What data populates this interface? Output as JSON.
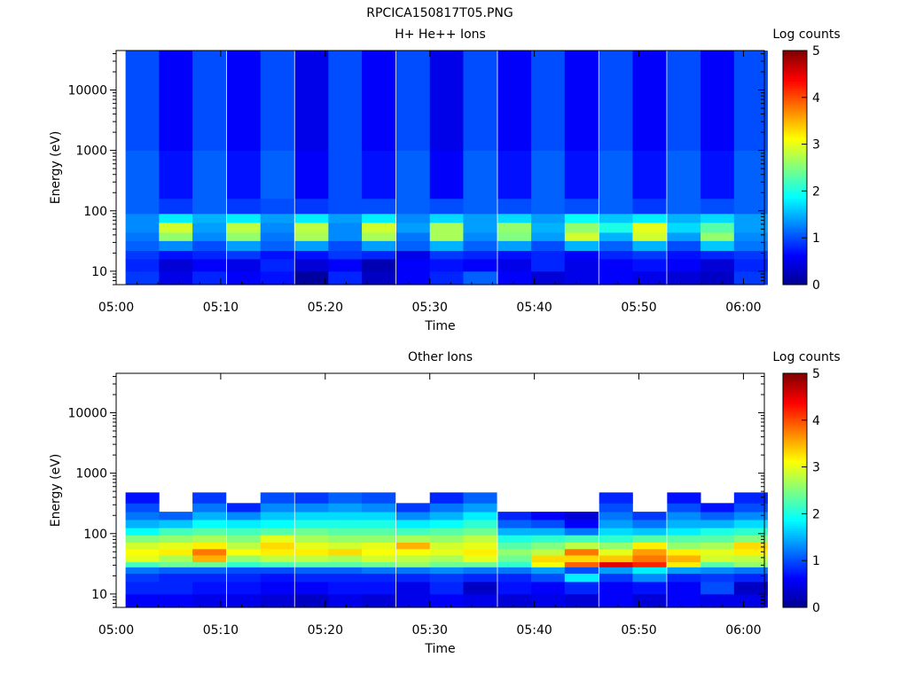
{
  "file_title": "RPCICA150817T05.PNG",
  "colorbar": {
    "label": "Log counts",
    "ticks": [
      "0",
      "1",
      "2",
      "3",
      "4",
      "5"
    ],
    "range": [
      0,
      5
    ],
    "colormap": [
      "#00008f",
      "#0000ff",
      "#0080ff",
      "#00ffff",
      "#80ff80",
      "#ffff00",
      "#ff8000",
      "#ff0000",
      "#800000"
    ]
  },
  "chart_data": [
    {
      "type": "heatmap",
      "title": "H+ He++ Ions",
      "xlabel": "Time",
      "ylabel": "Energy (eV)",
      "x_ticks": [
        "05:00",
        "05:10",
        "05:20",
        "05:30",
        "05:40",
        "05:50",
        "06:00"
      ],
      "x_tick_minutes": [
        0,
        10,
        20,
        30,
        40,
        50,
        60
      ],
      "x_range_minutes": [
        0,
        62
      ],
      "y_scale": "log",
      "y_ticks": [
        "10",
        "100",
        "1000",
        "10000"
      ],
      "y_tick_values": [
        10,
        100,
        1000,
        10000
      ],
      "y_range": [
        6,
        45000
      ],
      "time_bins_start_minutes": [
        0.9,
        4.1,
        7.3,
        10.6,
        13.8,
        17.1,
        20.3,
        23.5,
        26.8,
        30.0,
        33.2,
        36.5,
        39.7,
        42.9,
        46.2,
        49.4,
        52.7,
        55.9,
        59.1
      ],
      "bin_width_minutes": 3.2,
      "energy_band_edges_eV": [
        6,
        10,
        16,
        22,
        32,
        44,
        64,
        90,
        160,
        1000,
        45000
      ],
      "band_levels_log_counts": [
        [
          0.9,
          0.5,
          0.8,
          0.6,
          0.7,
          0.1,
          0.8,
          0.3,
          0.6,
          0.8,
          1.1,
          0.6,
          0.4,
          0.5,
          0.6,
          0.5,
          0.4,
          0.3,
          0.9
        ],
        [
          0.8,
          0.4,
          0.6,
          0.5,
          0.8,
          0.4,
          0.6,
          0.2,
          0.6,
          0.7,
          0.6,
          0.5,
          0.8,
          0.5,
          0.6,
          0.7,
          0.6,
          0.4,
          0.8
        ],
        [
          0.9,
          0.7,
          0.8,
          0.9,
          0.7,
          0.7,
          0.9,
          0.8,
          0.5,
          0.9,
          0.8,
          0.7,
          0.8,
          0.6,
          0.8,
          0.9,
          0.7,
          0.8,
          0.9
        ],
        [
          1.1,
          1.3,
          1.0,
          1.4,
          1.1,
          1.4,
          1.0,
          1.4,
          1.1,
          1.5,
          1.1,
          1.4,
          1.0,
          1.5,
          1.1,
          1.5,
          1.0,
          1.6,
          1.2
        ],
        [
          1.2,
          2.6,
          1.3,
          2.6,
          1.2,
          2.7,
          1.3,
          2.7,
          1.2,
          2.7,
          1.3,
          2.5,
          1.4,
          2.9,
          1.5,
          2.9,
          1.4,
          2.6,
          1.3
        ],
        [
          1.3,
          2.9,
          1.4,
          2.8,
          1.3,
          2.8,
          1.3,
          2.9,
          1.4,
          2.7,
          1.4,
          2.6,
          1.5,
          2.6,
          2.0,
          3.0,
          1.7,
          2.3,
          1.4
        ],
        [
          1.3,
          1.8,
          1.5,
          1.8,
          1.4,
          1.8,
          1.4,
          1.8,
          1.3,
          1.7,
          1.4,
          1.7,
          1.4,
          1.9,
          1.6,
          1.8,
          1.5,
          1.7,
          1.4
        ],
        [
          1.1,
          0.9,
          1.1,
          0.9,
          1.0,
          0.9,
          1.0,
          1.0,
          1.1,
          1.0,
          1.1,
          1.0,
          1.1,
          1.0,
          1.1,
          0.9,
          1.1,
          1.0,
          1.1
        ],
        [
          1.1,
          0.7,
          1.1,
          0.7,
          1.1,
          0.6,
          1.0,
          0.7,
          1.1,
          0.6,
          1.1,
          0.7,
          1.1,
          0.7,
          1.1,
          0.7,
          1.1,
          0.7,
          1.1
        ],
        [
          1.0,
          0.6,
          1.0,
          0.6,
          1.0,
          0.5,
          1.0,
          0.6,
          1.0,
          0.5,
          1.0,
          0.6,
          1.0,
          0.6,
          1.0,
          0.6,
          1.0,
          0.6,
          1.0
        ]
      ]
    },
    {
      "type": "heatmap",
      "title": "Other Ions",
      "xlabel": "Time",
      "ylabel": "Energy (eV)",
      "x_ticks": [
        "05:00",
        "05:10",
        "05:20",
        "05:30",
        "05:40",
        "05:50",
        "06:00"
      ],
      "x_tick_minutes": [
        0,
        10,
        20,
        30,
        40,
        50,
        60
      ],
      "x_range_minutes": [
        0,
        62
      ],
      "y_scale": "log",
      "y_ticks": [
        "10",
        "100",
        "1000",
        "10000"
      ],
      "y_tick_values": [
        10,
        100,
        1000,
        10000
      ],
      "y_range": [
        6,
        45000
      ],
      "time_bins_start_minutes": [
        0.9,
        4.1,
        7.3,
        10.6,
        13.8,
        17.1,
        20.3,
        23.5,
        26.8,
        30.0,
        33.2,
        36.5,
        39.7,
        42.9,
        46.2,
        49.4,
        52.7,
        55.9,
        59.1
      ],
      "bin_width_minutes": 3.2,
      "energy_band_edges_eV": [
        6,
        10,
        16,
        22,
        28,
        34,
        44,
        56,
        72,
        95,
        125,
        170,
        230,
        320,
        480
      ],
      "band_levels_log_counts": [
        [
          0.6,
          0.6,
          0.5,
          0.5,
          0.4,
          0.3,
          0.5,
          0.4,
          0.5,
          0.6,
          0.5,
          0.4,
          0.5,
          0.4,
          0.6,
          0.4,
          0.6,
          0.5,
          0.5
        ],
        [
          0.8,
          0.8,
          0.7,
          0.7,
          0.6,
          0.6,
          0.7,
          0.7,
          0.5,
          0.8,
          0.3,
          0.7,
          0.6,
          0.8,
          0.6,
          0.7,
          0.6,
          1.0,
          0.3
        ],
        [
          0.9,
          0.8,
          0.8,
          0.8,
          0.7,
          0.8,
          0.8,
          0.8,
          0.8,
          0.9,
          0.8,
          0.8,
          1.0,
          1.8,
          0.9,
          1.3,
          0.8,
          0.9,
          0.8
        ],
        [
          1.2,
          1.1,
          1.1,
          1.0,
          1.0,
          1.1,
          1.1,
          1.2,
          1.2,
          1.3,
          1.2,
          1.2,
          1.4,
          1.0,
          1.4,
          1.8,
          1.4,
          1.3,
          1.2
        ],
        [
          2.2,
          2.4,
          2.4,
          2.1,
          2.2,
          2.3,
          2.3,
          2.4,
          2.6,
          2.4,
          2.4,
          2.1,
          3.1,
          3.9,
          4.5,
          4.2,
          3.2,
          2.3,
          2.6
        ],
        [
          3.0,
          2.7,
          3.5,
          2.6,
          2.8,
          2.8,
          2.7,
          2.9,
          2.8,
          2.7,
          3.0,
          2.4,
          3.3,
          3.3,
          3.4,
          3.8,
          3.5,
          2.9,
          2.8
        ],
        [
          3.1,
          3.2,
          3.8,
          3.1,
          3.2,
          3.2,
          3.3,
          3.1,
          3.1,
          3.0,
          3.2,
          2.6,
          2.8,
          3.8,
          3.0,
          3.6,
          3.2,
          3.0,
          3.2
        ],
        [
          2.9,
          3.0,
          3.2,
          2.8,
          3.3,
          3.0,
          2.9,
          3.0,
          3.5,
          2.9,
          3.0,
          2.3,
          2.5,
          2.8,
          2.6,
          3.2,
          2.6,
          2.7,
          3.3
        ],
        [
          2.5,
          2.6,
          2.7,
          2.5,
          3.0,
          2.7,
          2.6,
          2.6,
          2.7,
          2.6,
          2.8,
          2.0,
          2.1,
          2.2,
          2.1,
          2.3,
          2.3,
          2.3,
          2.5
        ],
        [
          1.9,
          2.2,
          2.3,
          2.2,
          2.3,
          2.4,
          2.3,
          2.3,
          2.2,
          2.3,
          2.4,
          1.5,
          1.5,
          1.2,
          1.7,
          1.6,
          1.8,
          2.0,
          2.1
        ],
        [
          1.5,
          1.6,
          1.9,
          1.8,
          1.9,
          2.0,
          2.0,
          2.0,
          1.8,
          1.9,
          2.1,
          1.1,
          1.0,
          0.6,
          1.4,
          1.2,
          1.5,
          1.5,
          1.7
        ],
        [
          1.2,
          1.1,
          1.5,
          1.3,
          1.6,
          1.7,
          1.7,
          1.7,
          1.3,
          1.5,
          1.8,
          0.8,
          0.6,
          0.4,
          1.2,
          0.9,
          1.3,
          1.1,
          1.3
        ],
        [
          1.0,
          null,
          1.2,
          0.8,
          1.3,
          1.3,
          1.4,
          1.3,
          0.9,
          1.2,
          1.4,
          null,
          null,
          null,
          1.0,
          null,
          1.0,
          0.7,
          1.0
        ],
        [
          0.7,
          null,
          0.9,
          null,
          1.0,
          0.9,
          1.1,
          1.0,
          null,
          0.8,
          1.1,
          null,
          null,
          null,
          0.8,
          null,
          0.7,
          null,
          0.8
        ]
      ]
    }
  ]
}
